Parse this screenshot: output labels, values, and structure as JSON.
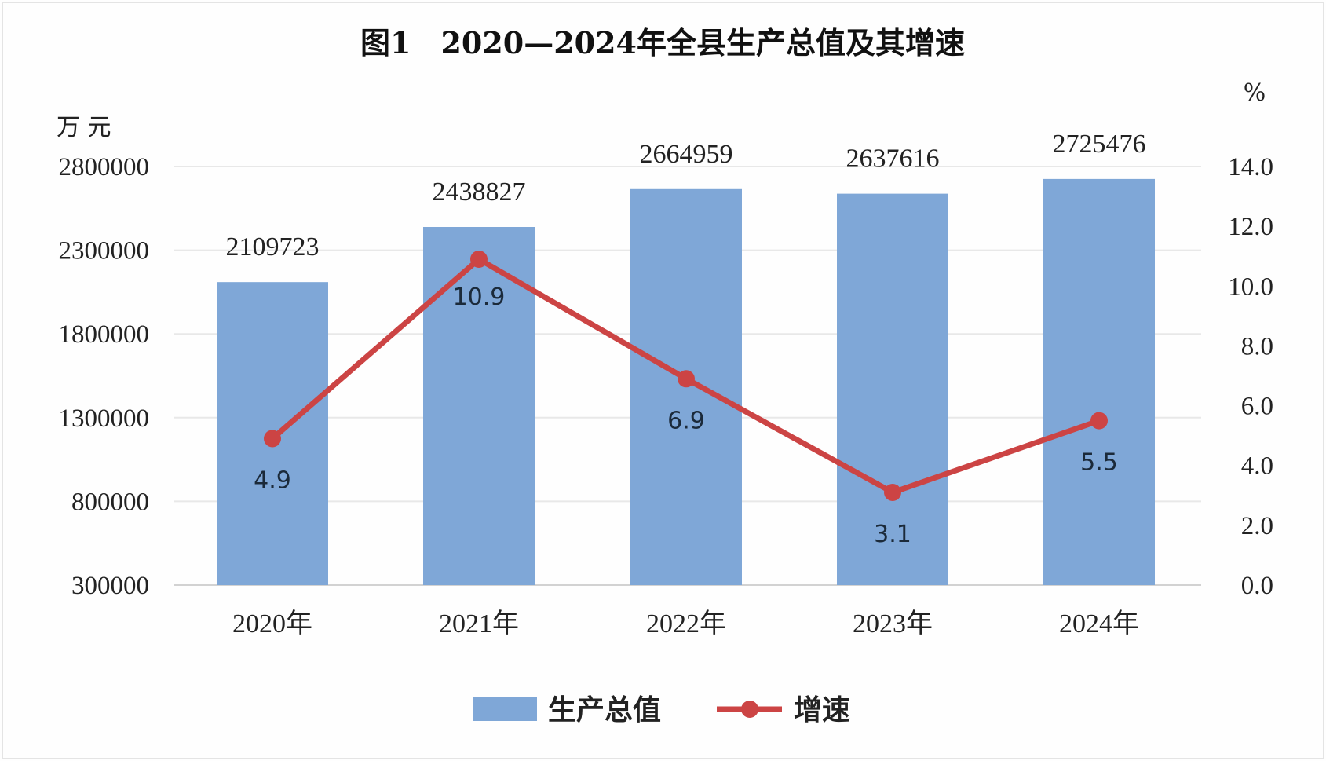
{
  "chart_data": {
    "type": "bar",
    "title": "图1　2020—2024年全县生产总值及其增速",
    "categories": [
      "2020年",
      "2021年",
      "2022年",
      "2023年",
      "2024年"
    ],
    "series": [
      {
        "name": "生产总值",
        "type": "bar",
        "axis": "left",
        "color": "#7fa7d7",
        "values": [
          2109723,
          2438827,
          2664959,
          2637616,
          2725476
        ]
      },
      {
        "name": "增速",
        "type": "line",
        "axis": "right",
        "color": "#cc4444",
        "values": [
          4.9,
          10.9,
          6.9,
          3.1,
          5.5
        ]
      }
    ],
    "left_axis": {
      "unit": "万  元",
      "min": 300000,
      "max": 2800000,
      "ticks": [
        300000,
        800000,
        1300000,
        1800000,
        2300000,
        2800000
      ],
      "tick_labels": [
        "300000",
        "800000",
        "1300000",
        "1800000",
        "2300000",
        "2800000"
      ]
    },
    "right_axis": {
      "unit": "%",
      "min": 0,
      "max": 14,
      "ticks": [
        0,
        2,
        4,
        6,
        8,
        10,
        12,
        14
      ],
      "tick_labels": [
        "0.0",
        "2.0",
        "4.0",
        "6.0",
        "8.0",
        "10.0",
        "12.0",
        "14.0"
      ]
    },
    "bar_labels": [
      "2109723",
      "2438827",
      "2664959",
      "2637616",
      "2725476"
    ],
    "line_labels": [
      "4.9",
      "10.9",
      "6.9",
      "3.1",
      "5.5"
    ],
    "grid": true,
    "legend_position": "bottom"
  }
}
